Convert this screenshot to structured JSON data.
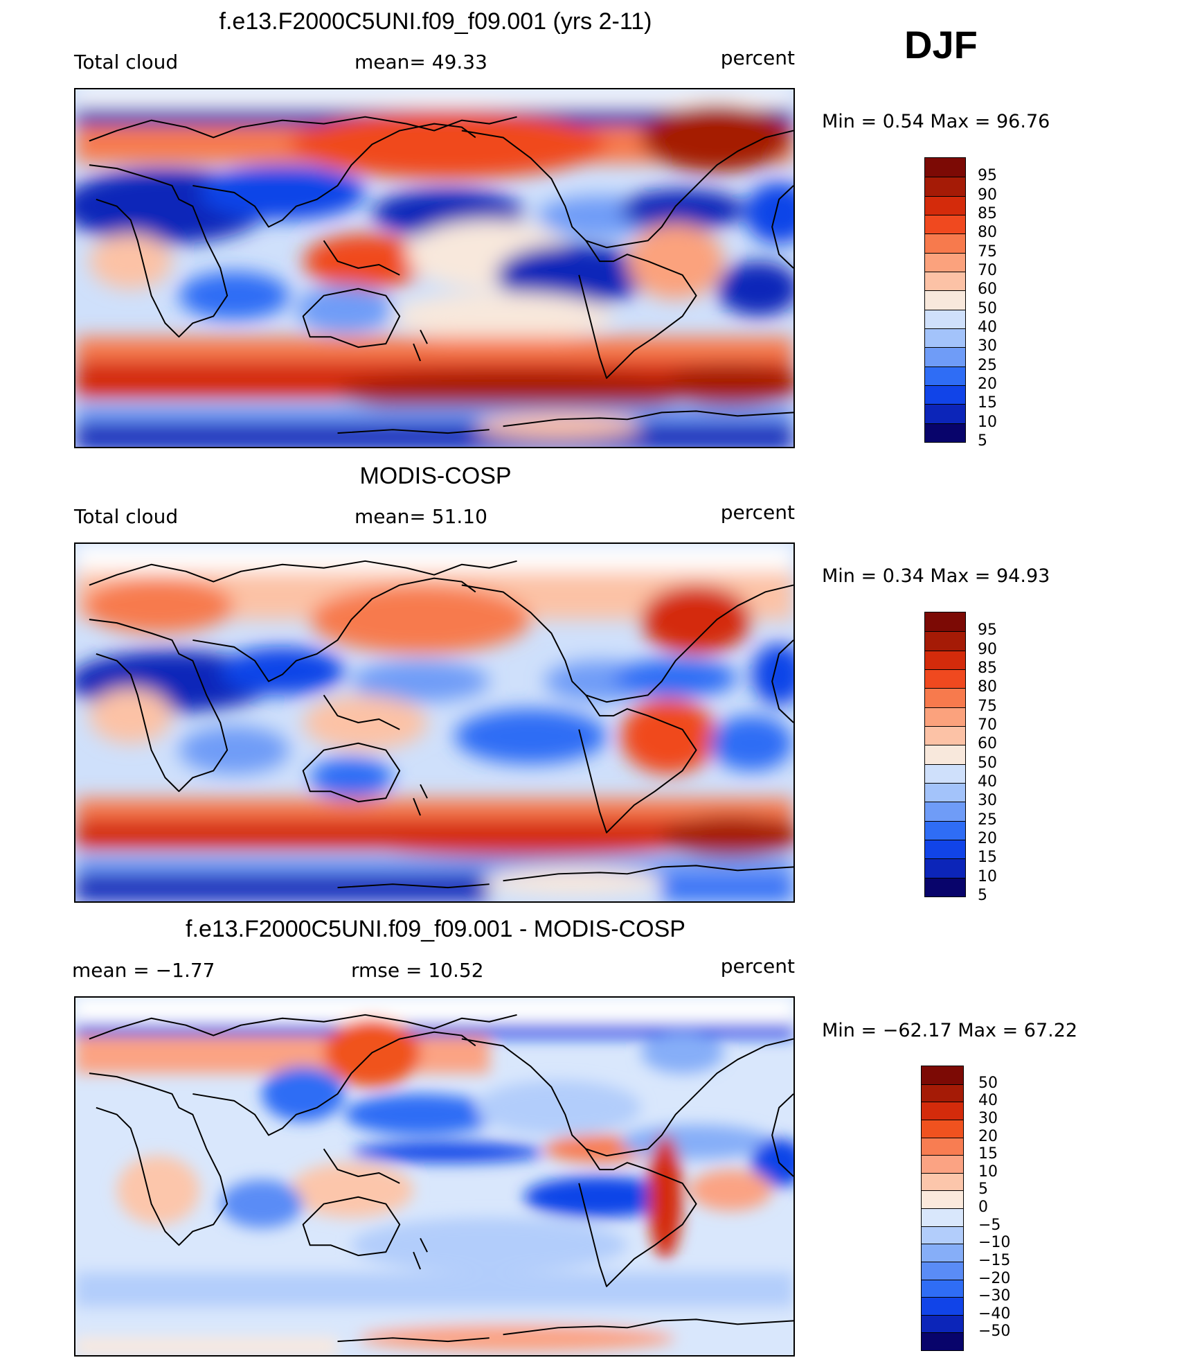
{
  "season": "DJF",
  "colors": {
    "absolute_scale": [
      "#08046b",
      "#0c25b9",
      "#1144e8",
      "#2f6df5",
      "#6f9cf7",
      "#a3c3fa",
      "#cfe0fb",
      "#f8e8dc",
      "#fcc2a6",
      "#fba27d",
      "#f77a4d",
      "#f0491f",
      "#d42b0b",
      "#a51b06",
      "#7c0a05"
    ],
    "difference_scale": [
      "#08046b",
      "#0c25b9",
      "#1144e8",
      "#2f6df5",
      "#5a8cf6",
      "#86aef8",
      "#b2cdfb",
      "#d9e7fc",
      "#fbe9dc",
      "#fcc6ab",
      "#fba383",
      "#f87d52",
      "#f0521f",
      "#d42b0b",
      "#a51b06",
      "#7c0a05"
    ]
  },
  "panels": [
    {
      "id": "model",
      "title": "f.e13.F2000C5UNI.f09_f09.001 (yrs 2-11)",
      "left_label": "Total cloud",
      "center_label": "mean=   49.33",
      "right_label": "percent",
      "minmax_label": "Min  =     0.54  Max  =    96.76",
      "colorbar_labels": [
        "95",
        "90",
        "85",
        "80",
        "75",
        "70",
        "60",
        "50",
        "40",
        "30",
        "25",
        "20",
        "15",
        "10",
        "5"
      ]
    },
    {
      "id": "obs",
      "title": "MODIS-COSP",
      "left_label": "Total cloud",
      "center_label": "mean=   51.10",
      "right_label": "percent",
      "minmax_label": "Min  =     0.34  Max  =    94.93",
      "colorbar_labels": [
        "95",
        "90",
        "85",
        "80",
        "75",
        "70",
        "60",
        "50",
        "40",
        "30",
        "25",
        "20",
        "15",
        "10",
        "5"
      ]
    },
    {
      "id": "diff",
      "title": "f.e13.F2000C5UNI.f09_f09.001 - MODIS-COSP",
      "left_label": "mean  =    −1.77",
      "center_label": "rmse  =    10.52",
      "right_label": "percent",
      "minmax_label": "Min  = −62.17  Max  =    67.22",
      "colorbar_labels": [
        "50",
        "40",
        "30",
        "20",
        "15",
        "10",
        "5",
        "0",
        "−5",
        "−10",
        "−15",
        "−20",
        "−30",
        "−40",
        "−50"
      ]
    }
  ]
}
